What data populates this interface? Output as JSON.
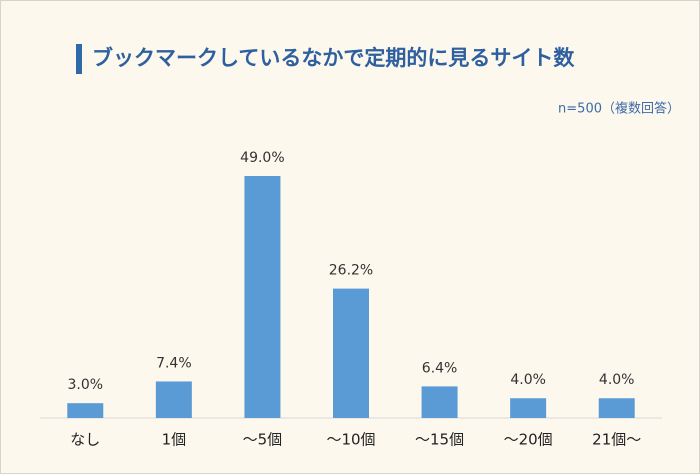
{
  "chart_data": {
    "type": "bar",
    "title": "ブックマークしているなかで定期的に見るサイト数",
    "note": "n=500（複数回答）",
    "categories": [
      "なし",
      "1個",
      "～5個",
      "～10個",
      "～15個",
      "～20個",
      "21個～"
    ],
    "values": [
      3.0,
      7.4,
      49.0,
      26.2,
      6.4,
      4.0,
      4.0
    ],
    "value_labels": [
      "3.0%",
      "7.4%",
      "49.0%",
      "26.2%",
      "6.4%",
      "4.0%",
      "4.0%"
    ],
    "color": "#5b9bd5"
  }
}
